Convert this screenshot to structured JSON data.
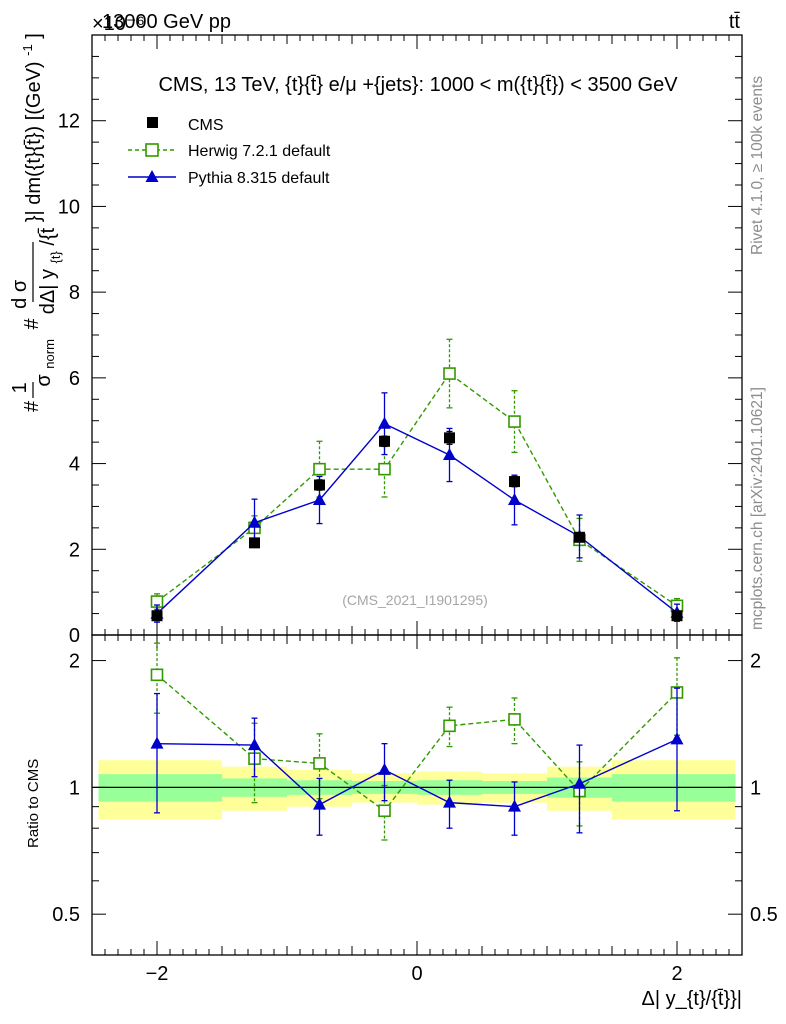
{
  "header": {
    "energy_label": "13000 GeV pp",
    "process_label": "tt̄",
    "exponent_label": "×10⁻⁶"
  },
  "sidebar": {
    "rivet_label": "Rivet 4.1.0, ≥ 100k events",
    "mcplots_label": "mcplots.cern.ch [arXiv:2401.10621]"
  },
  "chart_data": {
    "type": "scatter",
    "title": "CMS, 13 TeV, {t}{t̄} e/μ +{jets}: 1000 < m({t}{t̄}) < 3500 GeV",
    "analysis_id": "(CMS_2021_I1901295)",
    "xlabel": "Δ| y_{t}/{t̄}}|",
    "ylabel_top": "1/σ_norm d σ / dΔ|y_t/t̄| · dm(t t̄) [(GeV)⁻¹]",
    "ylabel_top_parts": {
      "hash1": "#",
      "one": "1",
      "sigma_norm": "σ",
      "norm_sub": "norm",
      "hash2": "#",
      "dsigma": "d σ",
      "ddelta": "dΔ| y",
      "sub_t": "{t}",
      "slash": "/{t̄",
      "rest": "}| dm({t}{t̄}) [(GeV)",
      "exp": "-1",
      "close": "]"
    },
    "ylabel_bottom": "Ratio to CMS",
    "xlim": [
      -2.5,
      2.5
    ],
    "ylim_top": [
      0,
      14
    ],
    "ylim_bottom": [
      0.4,
      2.3
    ],
    "x_ticks": [
      -2,
      0,
      2
    ],
    "x_tick_labels": [
      "−2",
      "0",
      "2"
    ],
    "y_ticks_top": [
      0,
      2,
      4,
      6,
      8,
      10,
      12
    ],
    "y_tick_labels_top": [
      "0",
      "2",
      "4",
      "6",
      "8",
      "10",
      "12"
    ],
    "y_ticks_bottom": [
      0.5,
      1,
      2
    ],
    "y_tick_labels_bottom": [
      "0.5",
      "1",
      "2"
    ],
    "bins": [
      [
        -2.5,
        -1.5
      ],
      [
        -1.5,
        -1
      ],
      [
        -1,
        -0.5
      ],
      [
        -0.5,
        0
      ],
      [
        0,
        0.5
      ],
      [
        0.5,
        1
      ],
      [
        1,
        1.5
      ],
      [
        1.5,
        2.5
      ]
    ],
    "x": [
      -2,
      -1.25,
      -0.75,
      -0.25,
      0.25,
      0.75,
      1.25,
      2
    ],
    "legend": [
      "CMS",
      "Herwig 7.2.1 default",
      "Pythia 8.315 default"
    ],
    "series": [
      {
        "name": "CMS",
        "color": "#000000",
        "marker": "square-filled",
        "values": [
          0.45,
          2.15,
          3.5,
          4.52,
          4.6,
          3.58,
          2.28,
          0.45
        ],
        "errors": [
          0.03,
          0.08,
          0.12,
          0.12,
          0.15,
          0.12,
          0.1,
          0.03
        ]
      },
      {
        "name": "Herwig 7.2.1 default",
        "color": "#339900",
        "marker": "square-open",
        "dashed": true,
        "values": [
          0.78,
          2.5,
          3.87,
          3.87,
          6.1,
          4.98,
          2.22,
          0.68
        ],
        "errors": [
          0.18,
          0.28,
          0.65,
          0.65,
          0.8,
          0.72,
          0.5,
          0.17
        ]
      },
      {
        "name": "Pythia 8.315 default",
        "color": "#0000cc",
        "marker": "triangle-filled",
        "values": [
          0.5,
          2.62,
          3.15,
          4.93,
          4.2,
          3.15,
          2.3,
          0.52
        ],
        "errors": [
          0.2,
          0.55,
          0.55,
          0.72,
          0.62,
          0.58,
          0.5,
          0.2
        ]
      }
    ],
    "ratio_series": [
      {
        "name": "Herwig 7.2.1 default",
        "values": [
          1.85,
          1.17,
          1.14,
          0.88,
          1.4,
          1.45,
          0.98,
          1.68
        ],
        "errors": [
          0.35,
          0.25,
          0.2,
          0.13,
          0.15,
          0.18,
          0.17,
          0.35
        ]
      },
      {
        "name": "Pythia 8.315 default",
        "values": [
          1.27,
          1.26,
          0.91,
          1.1,
          0.92,
          0.9,
          1.02,
          1.3
        ],
        "errors": [
          0.4,
          0.2,
          0.14,
          0.17,
          0.12,
          0.13,
          0.24,
          0.42
        ]
      }
    ],
    "uncertainty_bands": {
      "green_halfwidth": [
        0.075,
        0.05,
        0.04,
        0.035,
        0.04,
        0.035,
        0.055,
        0.075
      ],
      "yellow_halfwidth": [
        0.16,
        0.12,
        0.1,
        0.08,
        0.09,
        0.08,
        0.12,
        0.16
      ]
    }
  }
}
